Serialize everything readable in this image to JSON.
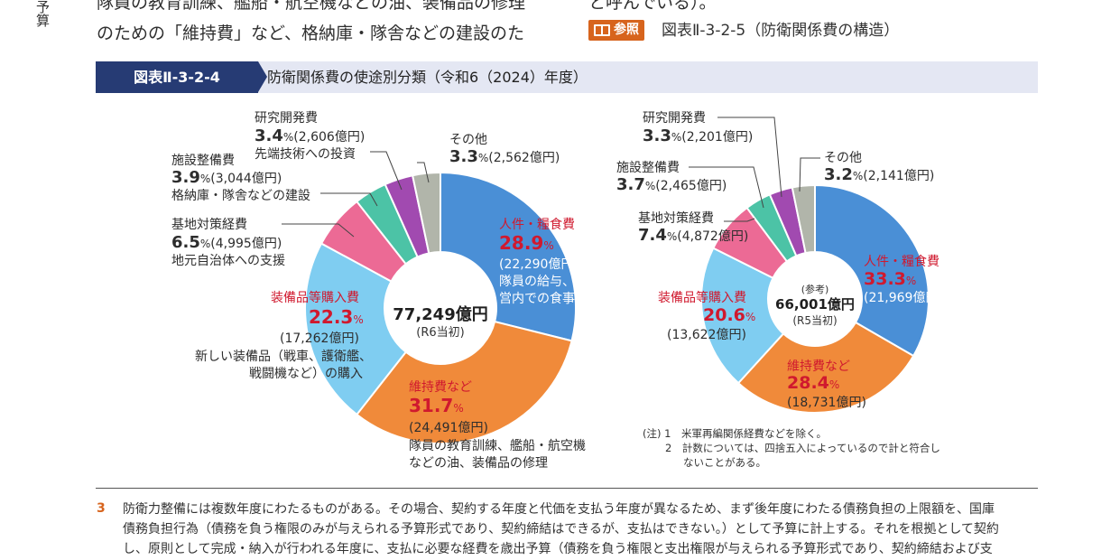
{
  "side_tab": "予算",
  "body_text": {
    "line1": "隊員の教育訓練、艦船・航空機などの油、装備品の修理",
    "line2": "のための「維持費」など、格納庫・隊舎などの建設のた",
    "right_line1": "と呼んでいる）。"
  },
  "reference": {
    "badge": "参照",
    "text": "図表Ⅱ-3-2-5（防衛関係費の構造）"
  },
  "figure": {
    "id": "図表Ⅱ-3-2-4",
    "title": "防衛関係費の使途別分類（令和6（2024）年度）"
  },
  "colors": {
    "personnel": "#4a8fd6",
    "maintenance": "#f08a3a",
    "equipment": "#7fcdf1",
    "base": "#ec6a95",
    "facility": "#4cc3a6",
    "rnd": "#a14ab0",
    "other": "#b1b5aa",
    "accent_red": "#d0192e",
    "header_navy": "#263b74"
  },
  "chart_data": [
    {
      "type": "pie",
      "title": "",
      "center_total": "77,249億円",
      "center_sub": "(R6当初)",
      "slices": [
        {
          "key": "personnel",
          "name": "人件・糧食費",
          "pct": 28.9,
          "amount": "(22,290億円)",
          "desc": [
            "隊員の給与、退職金、",
            "営内での食事"
          ]
        },
        {
          "key": "maintenance",
          "name": "維持費など",
          "pct": 31.7,
          "amount": "(24,491億円)",
          "desc": [
            "隊員の教育訓練、艦船・航空機",
            "などの油、装備品の修理"
          ]
        },
        {
          "key": "equipment",
          "name": "装備品等購入費",
          "pct": 22.3,
          "amount": "(17,262億円)",
          "desc": [
            "新しい装備品（戦車、護衛艦、",
            "戦闘機など）の購入"
          ]
        },
        {
          "key": "base",
          "name": "基地対策経費",
          "pct": 6.5,
          "amount": "(4,995億円)",
          "desc": [
            "地元自治体への支援"
          ]
        },
        {
          "key": "facility",
          "name": "施設整備費",
          "pct": 3.9,
          "amount": "(3,044億円)",
          "desc": [
            "格納庫・隊舎などの建設"
          ]
        },
        {
          "key": "rnd",
          "name": "研究開発費",
          "pct": 3.4,
          "amount": "(2,606億円)",
          "desc": [
            "先端技術への投資"
          ]
        },
        {
          "key": "other",
          "name": "その他",
          "pct": 3.3,
          "amount": "(2,562億円)",
          "desc": []
        }
      ]
    },
    {
      "type": "pie",
      "title": "",
      "center_ref": "(参考)",
      "center_total": "66,001億円",
      "center_sub": "(R5当初)",
      "slices": [
        {
          "key": "personnel",
          "name": "人件・糧食費",
          "pct": 33.3,
          "amount": "(21,969億円)"
        },
        {
          "key": "maintenance",
          "name": "維持費など",
          "pct": 28.4,
          "amount": "(18,731億円)"
        },
        {
          "key": "equipment",
          "name": "装備品等購入費",
          "pct": 20.6,
          "amount": "(13,622億円)"
        },
        {
          "key": "base",
          "name": "基地対策経費",
          "pct": 7.4,
          "amount": "(4,872億円)"
        },
        {
          "key": "facility",
          "name": "施設整備費",
          "pct": 3.7,
          "amount": "(2,465億円)"
        },
        {
          "key": "rnd",
          "name": "研究開発費",
          "pct": 3.3,
          "amount": "(2,201億円)"
        },
        {
          "key": "other",
          "name": "その他",
          "pct": 3.2,
          "amount": "(2,141億円)"
        }
      ]
    }
  ],
  "labels": {
    "pct_unit": "%"
  },
  "notes": {
    "n1": "(注) 1　米軍再編関係経費などを除く。",
    "n2": "2　計数については、四捨五入によっているので計と符合し",
    "n3": "ないことがある。"
  },
  "footnote": {
    "number": "3",
    "line1": "防衛力整備には複数年度にわたるものがある。その場合、契約する年度と代価を支払う年度が異なるため、まず後年度にわたる債務負担の上限額を、国庫",
    "line2": "債務負担行為（債務を負う権限のみが与えられる予算形式であり、契約締結はできるが、支払はできない。）として予算に計上する。それを根拠として契約",
    "line3": "し、原則として完成・納入が行われる年度に、支払に必要な経費を歳出予算（債務を負う権限と支出権限が与えられる予算形式であり、契約締結および支"
  }
}
